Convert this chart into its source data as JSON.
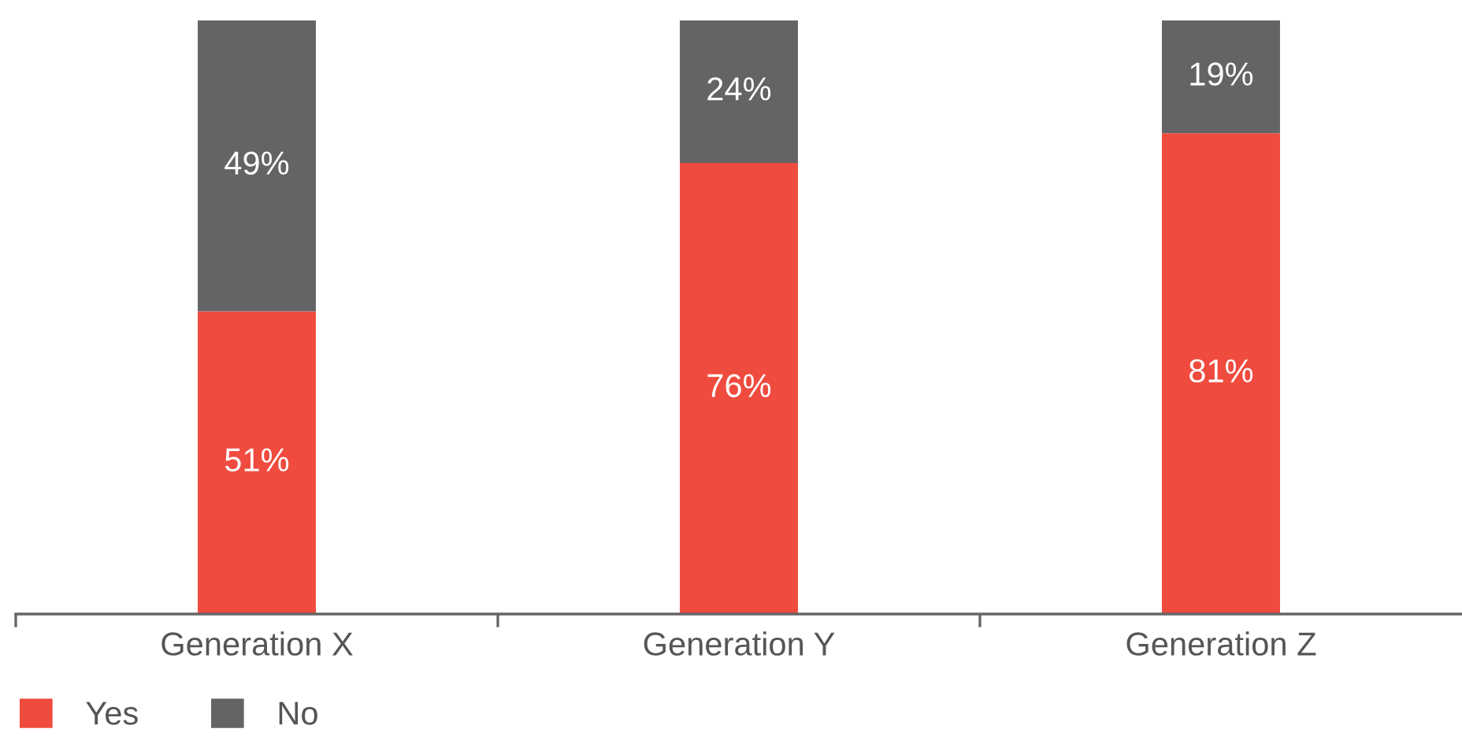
{
  "chart_data": {
    "type": "bar",
    "stacked": true,
    "legend": "bottom left",
    "categories": [
      "Generation X",
      "Generation Y",
      "Generation Z"
    ],
    "tick_labels": "x",
    "series": [
      {
        "name": "Yes",
        "color": "#f04b3f",
        "values": [
          51,
          76,
          81
        ],
        "value_labels": [
          "51%",
          "76%",
          "81%"
        ]
      },
      {
        "name": "No",
        "color": "#636466",
        "values": [
          49,
          24,
          19
        ],
        "value_labels": [
          "49%",
          "24%",
          "19%"
        ]
      }
    ]
  }
}
